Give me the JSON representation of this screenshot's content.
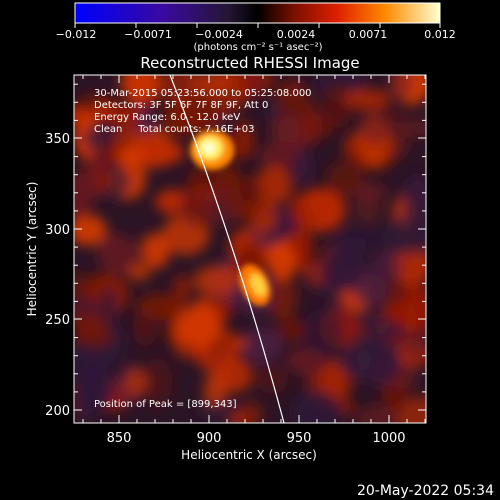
{
  "colorbar": {
    "ticks": [
      "−0.012",
      "−0.0071",
      "−0.0024",
      "0.0024",
      "0.0071",
      "0.012"
    ],
    "unit_label": "(photons cm⁻² s⁻¹ asec⁻²)"
  },
  "title": "Reconstructed RHESSI Image",
  "info": {
    "time_range": "30-Mar-2015 05:23:56.000 to 05:25:08.000",
    "detectors": "Detectors: 3F 5F 6F 7F 8F 9F, Att 0",
    "energy_range": "Energy Range: 6.0 - 12.0 keV",
    "clean_counts": "Clean     Total counts: 7.16E+03",
    "peak_position": "Position of Peak = [899,343]"
  },
  "axes": {
    "x_label": "Heliocentric X (arcsec)",
    "y_label": "Heliocentric Y (arcsec)",
    "x_ticks": [
      "850",
      "900",
      "950",
      "1000"
    ],
    "y_ticks": [
      "200",
      "250",
      "300",
      "350"
    ]
  },
  "footer": {
    "timestamp": "20-May-2022 05:34"
  },
  "colors": {
    "background": "#000000",
    "limb": "#ffffff"
  }
}
